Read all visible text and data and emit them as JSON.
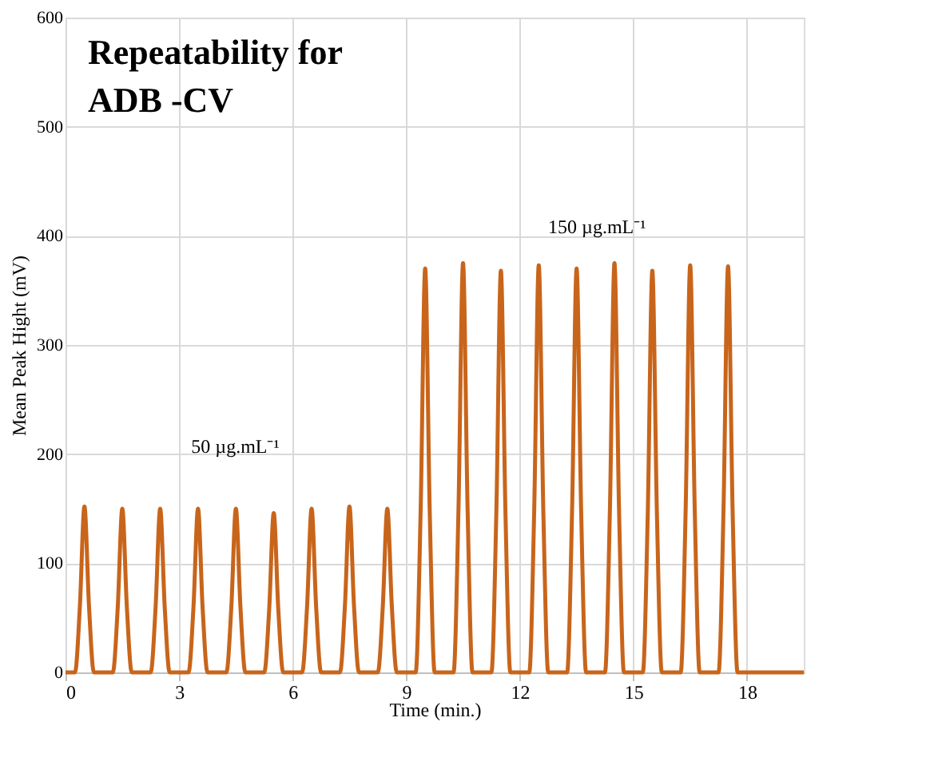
{
  "chart_data": {
    "type": "line",
    "title": "Repeatability for\nADB -CV",
    "xlabel": "Time (min.)",
    "ylabel": "Mean Peak Hight  (mV)",
    "x": [
      0,
      0.25,
      0.38,
      0.5,
      0.62,
      0.75,
      1.25,
      1.38,
      1.5,
      1.62,
      1.75,
      2.25,
      2.38,
      2.5,
      2.62,
      2.75,
      3.25,
      3.38,
      3.5,
      3.62,
      3.75,
      4.25,
      4.38,
      4.5,
      4.62,
      4.75,
      5.25,
      5.38,
      5.5,
      5.62,
      5.75,
      6.25,
      6.38,
      6.5,
      6.62,
      6.75,
      7.25,
      7.38,
      7.5,
      7.62,
      7.75,
      8.25,
      8.38,
      8.5,
      8.62,
      8.75,
      9.25,
      9.38,
      9.5,
      9.62,
      9.75,
      10.25,
      10.38,
      10.5,
      10.62,
      10.75,
      11.25,
      11.38,
      11.5,
      11.62,
      11.75,
      12.25,
      12.38,
      12.5,
      12.62,
      12.75,
      13.25,
      13.38,
      13.5,
      13.62,
      13.75,
      14.25,
      14.38,
      14.5,
      14.62,
      14.75,
      15.25,
      15.38,
      15.5,
      15.62,
      15.75,
      16.25,
      16.38,
      16.5,
      16.62,
      16.75,
      17.25,
      17.38,
      17.5,
      17.62,
      17.75,
      19.5
    ],
    "series": [
      {
        "color": "#c8651b",
        "values": [
          0,
          0,
          61,
          152,
          61,
          0,
          0,
          60,
          150,
          60,
          0,
          0,
          60,
          150,
          60,
          0,
          0,
          60,
          150,
          60,
          0,
          0,
          60,
          150,
          60,
          0,
          0,
          58,
          146,
          58,
          0,
          0,
          60,
          150,
          60,
          0,
          0,
          61,
          152,
          61,
          0,
          0,
          60,
          150,
          60,
          0,
          0,
          148,
          370,
          148,
          0,
          0,
          150,
          375,
          150,
          0,
          0,
          147,
          368,
          147,
          0,
          0,
          149,
          373,
          149,
          0,
          0,
          148,
          370,
          148,
          0,
          0,
          150,
          375,
          150,
          0,
          0,
          147,
          368,
          147,
          0,
          0,
          149,
          373,
          149,
          0,
          0,
          149,
          372,
          149,
          0,
          0
        ]
      }
    ],
    "xlim": [
      0,
      19.5
    ],
    "xticks": [
      0,
      3,
      6,
      9,
      12,
      15,
      18
    ],
    "ylim": [
      0,
      600
    ],
    "yticks": [
      0,
      100,
      200,
      300,
      400,
      500,
      600
    ],
    "grid": true,
    "marker": "none",
    "line_style": "solid",
    "annotations": [
      "50 µg.mL⁻¹",
      "150 µg.mL⁻¹"
    ]
  }
}
